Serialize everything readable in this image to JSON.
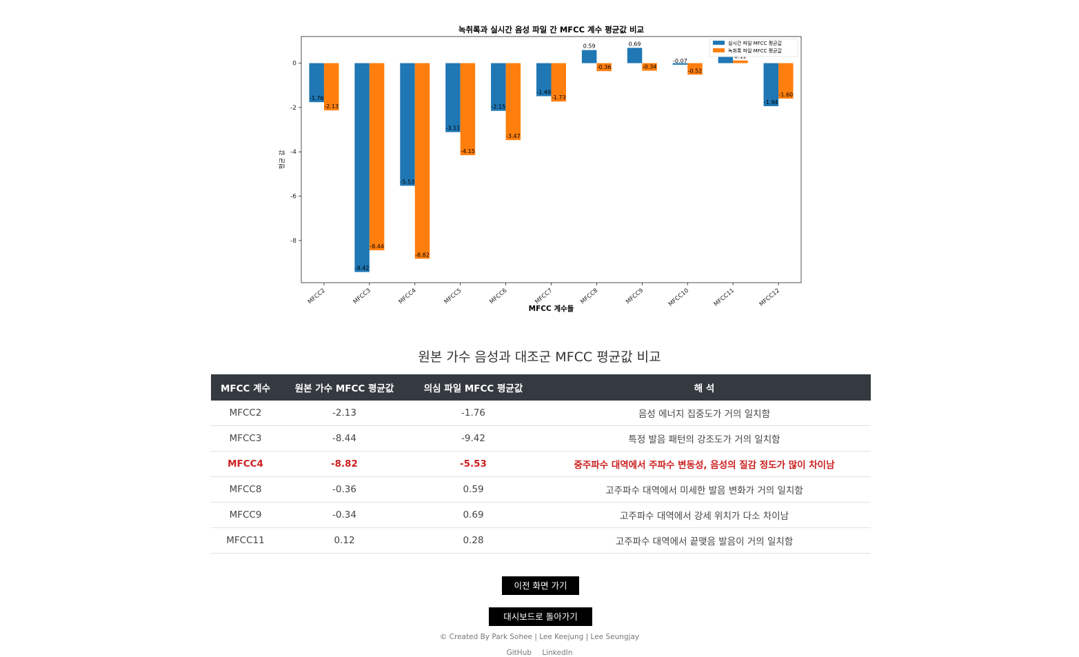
{
  "chart_data": {
    "type": "bar",
    "title": "녹취록과 실시간 음성 파일 간 MFCC 계수 평균값 비교",
    "xlabel": "MFCC 계수들",
    "ylabel": "평균 값",
    "categories": [
      "MFCC2",
      "MFCC3",
      "MFCC4",
      "MFCC5",
      "MFCC6",
      "MFCC7",
      "MFCC8",
      "MFCC9",
      "MFCC10",
      "MFCC11",
      "MFCC12"
    ],
    "series": [
      {
        "name": "실시간 파일 MFCC 평균값",
        "color": "#1f77b4",
        "values": [
          -1.76,
          -9.42,
          -5.53,
          -3.11,
          -2.15,
          -1.49,
          0.59,
          0.69,
          -0.07,
          0.28,
          -1.94
        ]
      },
      {
        "name": "녹취록 파일 MFCC 평균값",
        "color": "#ff7f0e",
        "values": [
          -2.13,
          -8.44,
          -8.82,
          -4.15,
          -3.47,
          -1.73,
          -0.36,
          -0.34,
          -0.52,
          0.12,
          -1.6
        ]
      }
    ],
    "ylim": [
      -9.9,
      1.2
    ],
    "yticks": [
      0,
      -2,
      -4,
      -6,
      -8
    ],
    "legend": "top-right",
    "grid": false
  },
  "section_title": "원본 가수 음성과 대조군 MFCC 평균값 비교",
  "table": {
    "headers": [
      "MFCC 계수",
      "원본 가수 MFCC 평균값",
      "의심 파일 MFCC 평균값",
      "해 석"
    ],
    "rows": [
      {
        "coef": "MFCC2",
        "original": "-2.13",
        "suspect": "-1.76",
        "note": "음성 에너지 집중도가 거의 일치함",
        "highlight": false
      },
      {
        "coef": "MFCC3",
        "original": "-8.44",
        "suspect": "-9.42",
        "note": "특정 발음 패턴의 강조도가 거의 일치함",
        "highlight": false
      },
      {
        "coef": "MFCC4",
        "original": "-8.82",
        "suspect": "-5.53",
        "note": "중주파수 대역에서 주파수 변동성, 음성의 질감 정도가 많이 차이남",
        "highlight": true
      },
      {
        "coef": "MFCC8",
        "original": "-0.36",
        "suspect": "0.59",
        "note": "고주파수 대역에서 미세한 발음 변화가 거의 일치함",
        "highlight": false
      },
      {
        "coef": "MFCC9",
        "original": "-0.34",
        "suspect": "0.69",
        "note": "고주파수 대역에서 강세 위치가 다소 차이남",
        "highlight": false
      },
      {
        "coef": "MFCC11",
        "original": "0.12",
        "suspect": "0.28",
        "note": "고주파수 대역에서 끝맺음 발음이 거의 일치함",
        "highlight": false
      }
    ],
    "highlight_color": "#cc1f1f"
  },
  "buttons": {
    "prev_label": "이전 화면 가기",
    "dashboard_label": "대시보드로 돌아가기"
  },
  "footer": {
    "credit": "© Created By Park Sohee | Lee Keejung | Lee Seungjay",
    "links": [
      "GitHub",
      "LinkedIn"
    ]
  }
}
